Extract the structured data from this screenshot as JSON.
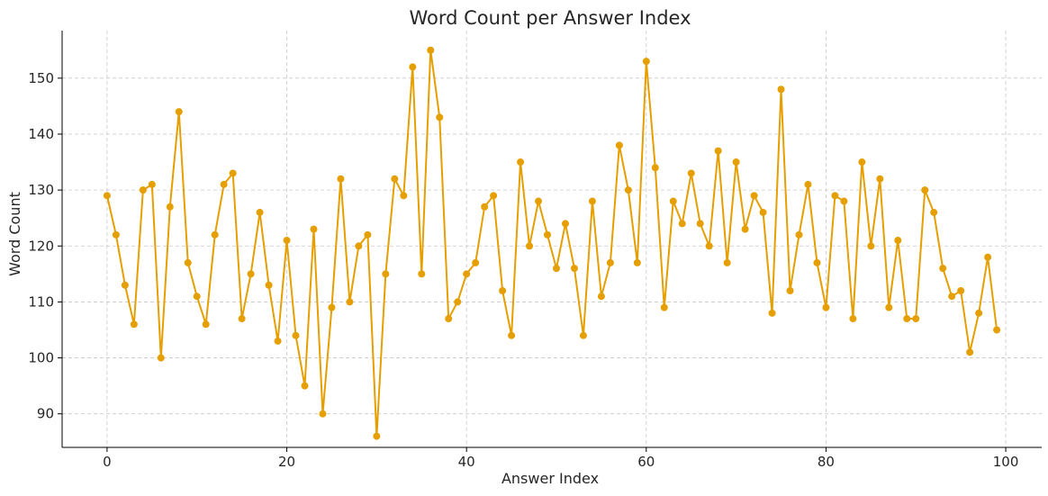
{
  "chart_data": {
    "type": "line",
    "title": "Word Count per Answer Index",
    "xlabel": "Answer Index",
    "ylabel": "Word Count",
    "xlim": [
      -5,
      104
    ],
    "ylim": [
      84,
      158.5
    ],
    "x_ticks": [
      0,
      20,
      40,
      60,
      80,
      100
    ],
    "y_ticks": [
      90,
      100,
      110,
      120,
      130,
      140,
      150
    ],
    "grid": true,
    "legend": "none",
    "series": [
      {
        "color": "#E69F00",
        "marker": "circle",
        "x": [
          0,
          1,
          2,
          3,
          4,
          5,
          6,
          7,
          8,
          9,
          10,
          11,
          12,
          13,
          14,
          15,
          16,
          17,
          18,
          19,
          20,
          21,
          22,
          23,
          24,
          25,
          26,
          27,
          28,
          29,
          30,
          31,
          32,
          33,
          34,
          35,
          36,
          37,
          38,
          39,
          40,
          41,
          42,
          43,
          44,
          45,
          46,
          47,
          48,
          49,
          50,
          51,
          52,
          53,
          54,
          55,
          56,
          57,
          58,
          59,
          60,
          61,
          62,
          63,
          64,
          65,
          66,
          67,
          68,
          69,
          70,
          71,
          72,
          73,
          74,
          75,
          76,
          77,
          78,
          79,
          80,
          81,
          82,
          83,
          84,
          85,
          86,
          87,
          88,
          89,
          90,
          91,
          92,
          93,
          94,
          95,
          96,
          97,
          98,
          99
        ],
        "values": [
          129,
          122,
          113,
          106,
          130,
          131,
          100,
          127,
          144,
          117,
          111,
          106,
          122,
          131,
          133,
          107,
          115,
          126,
          113,
          103,
          121,
          104,
          95,
          123,
          90,
          109,
          132,
          110,
          120,
          122,
          86,
          115,
          132,
          129,
          152,
          115,
          155,
          143,
          107,
          110,
          115,
          117,
          127,
          129,
          112,
          104,
          135,
          120,
          128,
          122,
          116,
          124,
          116,
          104,
          128,
          111,
          117,
          138,
          130,
          117,
          153,
          134,
          109,
          128,
          124,
          133,
          124,
          120,
          137,
          117,
          135,
          123,
          129,
          126,
          108,
          148,
          112,
          122,
          131,
          117,
          109,
          129,
          128,
          107,
          135,
          120,
          132,
          109,
          121,
          107,
          107,
          130,
          126,
          116,
          111,
          112,
          101,
          108,
          118,
          105
        ]
      }
    ]
  }
}
